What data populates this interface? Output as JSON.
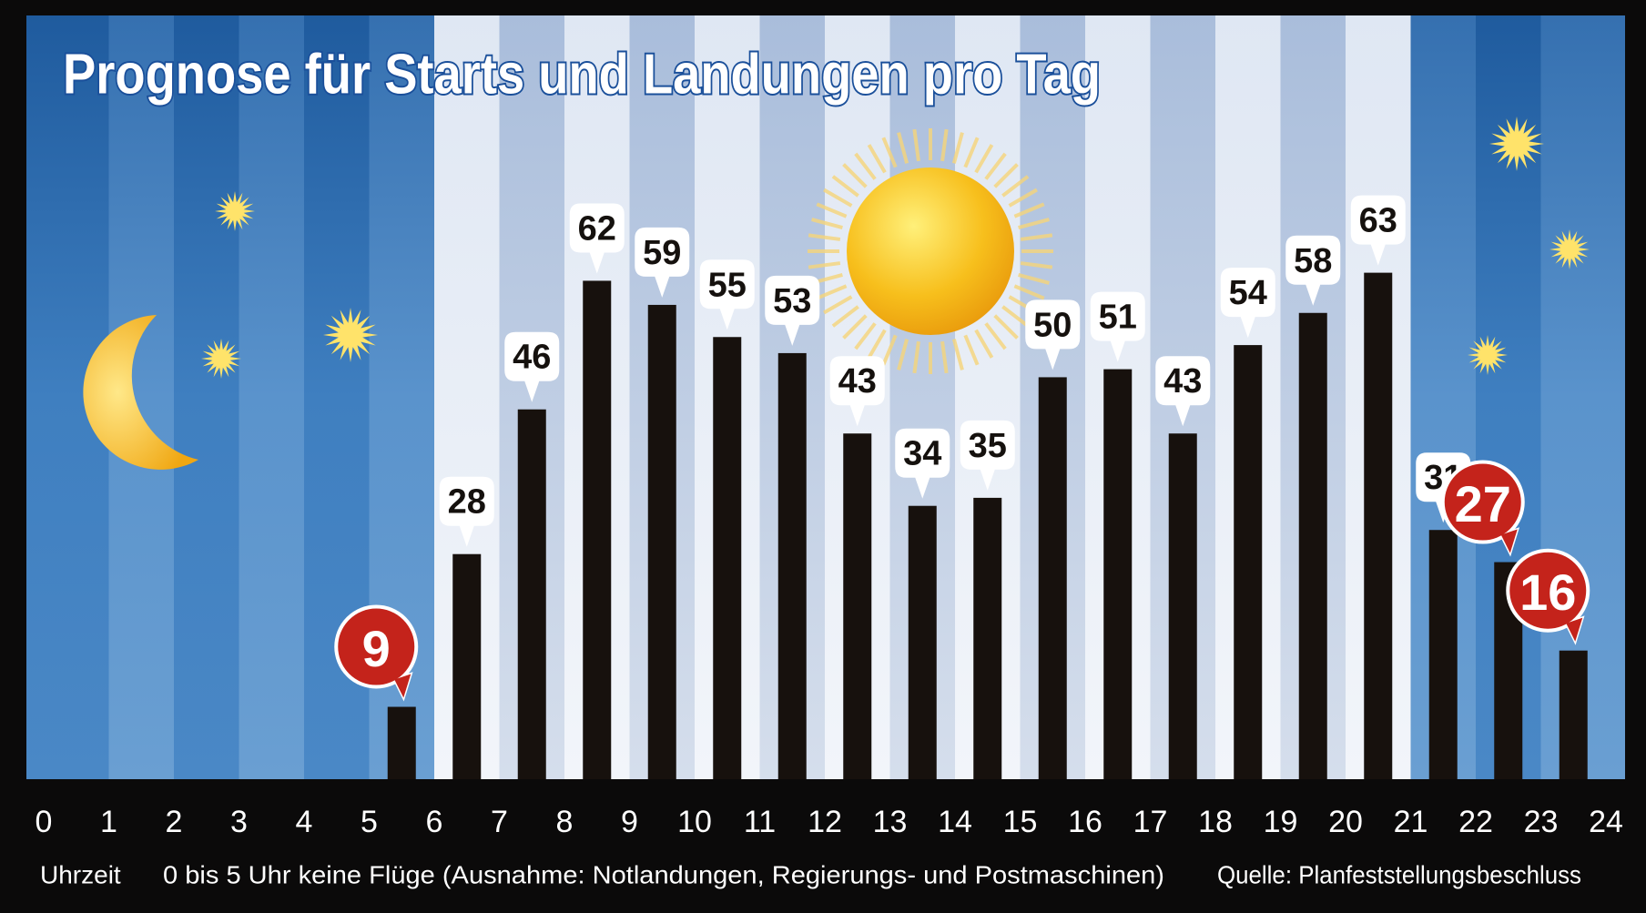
{
  "chart_data": {
    "type": "bar",
    "title": "Prognose für Starts und Landungen pro Tag",
    "xlabel": "Uhrzeit",
    "note": "0 bis 5 Uhr keine Flüge (Ausnahme: Notlandungen, Regierungs- und Postmaschinen)",
    "source": "Quelle: Planfeststellungsbeschluss",
    "x": [
      5,
      6,
      7,
      8,
      9,
      10,
      11,
      12,
      13,
      14,
      15,
      16,
      17,
      18,
      19,
      20,
      21,
      22,
      23
    ],
    "values": [
      9,
      28,
      46,
      62,
      59,
      55,
      53,
      43,
      34,
      35,
      50,
      51,
      43,
      54,
      58,
      63,
      31,
      27,
      16
    ],
    "color": "#17110d",
    "highlight_indices": [
      0,
      17,
      18
    ],
    "highlight_color": "#c4231b",
    "xlim": [
      0,
      24
    ],
    "xticks": [
      0,
      1,
      2,
      3,
      4,
      5,
      6,
      7,
      8,
      9,
      10,
      11,
      12,
      13,
      14,
      15,
      16,
      17,
      18,
      19,
      20,
      21,
      22,
      23,
      24
    ],
    "ylim": [
      0,
      95
    ]
  }
}
